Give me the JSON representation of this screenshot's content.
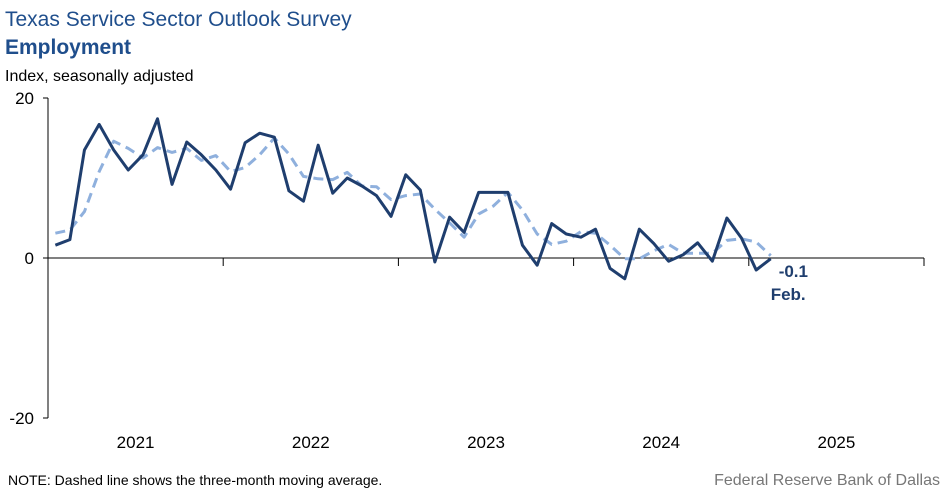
{
  "chart_data": {
    "type": "line",
    "title": "Texas Service Sector Outlook Survey",
    "subtitle": "Employment",
    "y_label": "Index, seasonally adjusted",
    "note": "NOTE: Dashed line shows the three-month  moving average.",
    "source": "Federal Reserve Bank of Dallas",
    "last_label": "-0.1",
    "last_month": "Feb.",
    "xlim": [
      2021,
      2026
    ],
    "xticks": [
      2021,
      2022,
      2023,
      2024,
      2025,
      2026
    ],
    "year_labels": [
      {
        "value": 2021.5,
        "label": "2021"
      },
      {
        "value": 2022.5,
        "label": "2022"
      },
      {
        "value": 2023.5,
        "label": "2023"
      },
      {
        "value": 2024.5,
        "label": "2024"
      },
      {
        "value": 2025.5,
        "label": "2025"
      }
    ],
    "ylim": [
      -20,
      20
    ],
    "yticks": [
      -20,
      0,
      20
    ],
    "x": [
      2021.042,
      2021.125,
      2021.208,
      2021.292,
      2021.375,
      2021.458,
      2021.542,
      2021.625,
      2021.708,
      2021.792,
      2021.875,
      2021.958,
      2022.042,
      2022.125,
      2022.208,
      2022.292,
      2022.375,
      2022.458,
      2022.542,
      2022.625,
      2022.708,
      2022.792,
      2022.875,
      2022.958,
      2023.042,
      2023.125,
      2023.208,
      2023.292,
      2023.375,
      2023.458,
      2023.542,
      2023.625,
      2023.708,
      2023.792,
      2023.875,
      2023.958,
      2024.042,
      2024.125,
      2024.208,
      2024.292,
      2024.375,
      2024.458,
      2024.542,
      2024.625,
      2024.708,
      2024.792,
      2024.875,
      2024.958,
      2025.042,
      2025.125
    ],
    "series": [
      {
        "color": "#8fb0dd",
        "dashed": true,
        "values": [
          3.1,
          3.5,
          5.8,
          10.8,
          14.6,
          13.7,
          12.5,
          13.8,
          13.2,
          13.7,
          12.2,
          12.8,
          10.8,
          11.3,
          12.9,
          15.0,
          13.0,
          10.2,
          9.9,
          9.8,
          10.7,
          9.0,
          8.9,
          7.3,
          7.8,
          8.0,
          6.1,
          4.4,
          2.6,
          5.5,
          6.5,
          8.2,
          6.0,
          3.0,
          1.7,
          2.1,
          3.3,
          3.1,
          1.6,
          -0.1,
          -0.1,
          0.9,
          1.7,
          0.6,
          0.6,
          0.6,
          2.2,
          2.4,
          2.0,
          0.3
        ]
      },
      {
        "color": "#1f3e6e",
        "dashed": false,
        "values": [
          1.6,
          2.3,
          13.5,
          16.7,
          13.5,
          11.0,
          12.9,
          17.4,
          9.2,
          14.5,
          12.9,
          11.0,
          8.6,
          14.4,
          15.6,
          15.1,
          8.4,
          7.1,
          14.1,
          8.1,
          10.0,
          9.0,
          7.8,
          5.2,
          10.4,
          8.5,
          -0.5,
          5.1,
          3.2,
          8.2,
          8.2,
          8.2,
          1.6,
          -0.9,
          4.3,
          3.0,
          2.6,
          3.6,
          -1.3,
          -2.6,
          3.6,
          1.8,
          -0.4,
          0.4,
          1.9,
          -0.4,
          5.0,
          2.5,
          -1.5,
          -0.1
        ]
      }
    ]
  }
}
